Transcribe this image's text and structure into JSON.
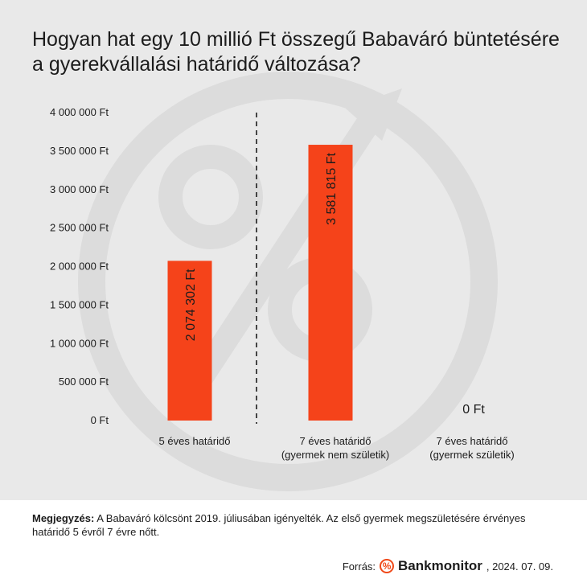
{
  "chart_data": {
    "type": "bar",
    "title": "Hogyan hat egy 10 millió Ft összegű Babaváró büntetésére a gyerekvállalási határidő változása?",
    "categories": [
      [
        "5 éves határidő"
      ],
      [
        "7 éves határidő",
        "(gyermek nem születik)"
      ],
      [
        "7 éves határidő",
        "(gyermek születik)"
      ]
    ],
    "values": [
      2074302,
      3581815,
      0
    ],
    "data_labels": [
      "2 074 302 Ft",
      "3 581 815 Ft",
      "0 Ft"
    ],
    "ylim": [
      0,
      4000000
    ],
    "yticks": [
      0,
      500000,
      1000000,
      1500000,
      2000000,
      2500000,
      3000000,
      3500000,
      4000000
    ],
    "ytick_labels": [
      "0 Ft",
      "500 000 Ft",
      "1 000 000 Ft",
      "1 500 000 Ft",
      "2 000 000 Ft",
      "2 500 000 Ft",
      "3 000 000 Ft",
      "3 500 000 Ft",
      "4 000 000 Ft"
    ],
    "bar_color": "#f5431a",
    "divider": "dashed line between first and second category",
    "grid": false,
    "xlabel": "",
    "ylabel": ""
  },
  "note": {
    "label": "Megjegyzés:",
    "text": " A Babaváró kölcsönt 2019. júliusában igényelték. Az első gyermek megszületésére érvényes határidő 5 évről 7 évre nőtt."
  },
  "source": {
    "label": "Forrás:",
    "logo_symbol": "%",
    "brand": "Bankmonitor",
    "date": ", 2024. 07. 09."
  },
  "colors": {
    "panel_bg": "#e9e9e9",
    "accent": "#f04a1a",
    "text": "#1c1c1c",
    "watermark": "#dcdcdc"
  }
}
